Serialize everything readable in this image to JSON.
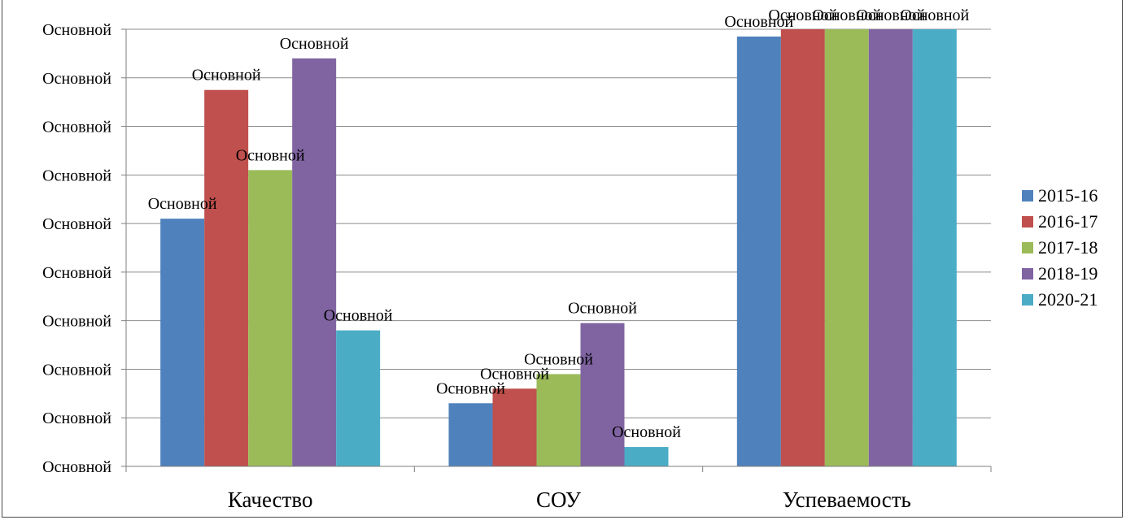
{
  "chart_data": {
    "type": "bar",
    "title": "",
    "xlabel": "",
    "ylabel": "",
    "categories": [
      "Качество",
      "СОУ",
      "Успеваемость"
    ],
    "series": [
      {
        "name": "2015-16",
        "color": "#4F81BD",
        "values": [
          51,
          13,
          88.5
        ],
        "labels": [
          "Основной",
          "Основной",
          "Основной"
        ]
      },
      {
        "name": "2016-17",
        "color": "#C0504D",
        "values": [
          77.5,
          16,
          90
        ],
        "labels": [
          "Основной",
          "Основной",
          "Основной"
        ]
      },
      {
        "name": "2017-18",
        "color": "#9BBB59",
        "values": [
          61,
          19,
          90
        ],
        "labels": [
          "Основной",
          "Основной",
          "Основной"
        ]
      },
      {
        "name": "2018-19",
        "color": "#8064A2",
        "values": [
          84,
          29.5,
          90
        ],
        "labels": [
          "Основной",
          "Основной",
          "Основной"
        ]
      },
      {
        "name": "2020-21",
        "color": "#4BACC6",
        "values": [
          28,
          4,
          90
        ],
        "labels": [
          "Основной",
          "Основной",
          "Основной"
        ]
      }
    ],
    "ylim": [
      0,
      90
    ],
    "yticks": [
      {
        "value": 0,
        "label": "Основной"
      },
      {
        "value": 10,
        "label": "Основной"
      },
      {
        "value": 20,
        "label": "Основной"
      },
      {
        "value": 30,
        "label": "Основной"
      },
      {
        "value": 40,
        "label": "Основной"
      },
      {
        "value": 50,
        "label": "Основной"
      },
      {
        "value": 60,
        "label": "Основной"
      },
      {
        "value": 70,
        "label": "Основной"
      },
      {
        "value": 80,
        "label": "Основной"
      },
      {
        "value": 90,
        "label": "Основной"
      }
    ],
    "grid": true,
    "legend": "right"
  }
}
